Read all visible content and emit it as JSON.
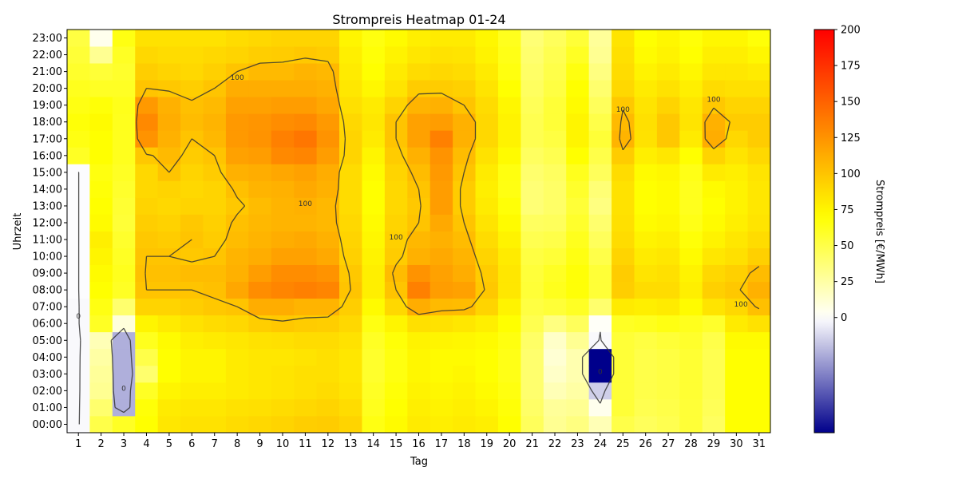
{
  "chart_data": {
    "type": "heatmap",
    "title": "Strompreis Heatmap 01-24",
    "xlabel": "Tag",
    "ylabel": "Uhrzeit",
    "x_categories": [
      "1",
      "2",
      "3",
      "4",
      "5",
      "6",
      "7",
      "8",
      "9",
      "10",
      "11",
      "12",
      "13",
      "14",
      "15",
      "16",
      "17",
      "18",
      "19",
      "20",
      "21",
      "22",
      "23",
      "24",
      "25",
      "26",
      "27",
      "28",
      "29",
      "30",
      "31"
    ],
    "y_categories": [
      "00:00",
      "01:00",
      "02:00",
      "03:00",
      "04:00",
      "05:00",
      "06:00",
      "07:00",
      "08:00",
      "09:00",
      "10:00",
      "11:00",
      "12:00",
      "13:00",
      "14:00",
      "15:00",
      "16:00",
      "17:00",
      "18:00",
      "19:00",
      "20:00",
      "21:00",
      "22:00",
      "23:00"
    ],
    "colorbar": {
      "label": "Strompreis [€/MWh]",
      "ticks": [
        "0",
        "25",
        "50",
        "75",
        "100",
        "125",
        "150",
        "175",
        "200"
      ],
      "range": [
        -80,
        200
      ],
      "colors": {
        "low": "#00008b",
        "zero": "#ffffff",
        "mid": "#ffff00",
        "high": "#ff0000"
      }
    },
    "contour_levels": [
      0,
      100
    ],
    "contour_labels": [
      "0",
      "100"
    ],
    "series_by_day": [
      [
        -2,
        -2,
        -2,
        -2,
        -2,
        -2,
        -2,
        -2,
        -1,
        -1,
        -1,
        -1,
        -1,
        -1,
        -1,
        -1,
        60,
        65,
        68,
        65,
        62,
        58,
        55,
        52
      ],
      [
        50,
        40,
        30,
        28,
        25,
        20,
        60,
        65,
        70,
        72,
        75,
        78,
        72,
        70,
        68,
        66,
        70,
        70,
        72,
        68,
        60,
        55,
        30,
        5
      ],
      [
        60,
        -25,
        -25,
        -25,
        -25,
        -25,
        10,
        40,
        60,
        62,
        60,
        58,
        55,
        56,
        58,
        60,
        62,
        62,
        62,
        63,
        60,
        58,
        60,
        65
      ],
      [
        70,
        68,
        60,
        40,
        50,
        62,
        75,
        92,
        100,
        102,
        100,
        98,
        95,
        92,
        90,
        90,
        98,
        125,
        130,
        122,
        100,
        95,
        90,
        85
      ],
      [
        82,
        80,
        75,
        70,
        70,
        72,
        80,
        92,
        100,
        102,
        100,
        96,
        93,
        90,
        92,
        100,
        105,
        110,
        112,
        110,
        98,
        92,
        88,
        85
      ],
      [
        85,
        82,
        78,
        75,
        75,
        78,
        85,
        95,
        100,
        104,
        98,
        100,
        98,
        92,
        90,
        92,
        96,
        100,
        104,
        102,
        95,
        90,
        88,
        85
      ],
      [
        85,
        82,
        78,
        75,
        75,
        80,
        88,
        98,
        102,
        104,
        100,
        96,
        94,
        92,
        92,
        96,
        100,
        106,
        108,
        105,
        100,
        94,
        90,
        85
      ],
      [
        88,
        85,
        80,
        80,
        80,
        82,
        90,
        100,
        115,
        110,
        108,
        104,
        102,
        98,
        102,
        110,
        118,
        122,
        122,
        118,
        112,
        100,
        92,
        88
      ],
      [
        90,
        86,
        82,
        82,
        82,
        85,
        95,
        112,
        128,
        120,
        112,
        108,
        106,
        104,
        108,
        112,
        120,
        125,
        124,
        118,
        112,
        105,
        95,
        90
      ],
      [
        92,
        88,
        84,
        84,
        82,
        86,
        98,
        112,
        132,
        128,
        118,
        112,
        108,
        108,
        110,
        115,
        130,
        135,
        128,
        120,
        112,
        105,
        96,
        92
      ],
      [
        95,
        90,
        86,
        86,
        84,
        88,
        96,
        108,
        135,
        128,
        118,
        114,
        108,
        110,
        114,
        118,
        132,
        140,
        130,
        120,
        112,
        108,
        98,
        92
      ],
      [
        96,
        92,
        88,
        86,
        86,
        88,
        95,
        108,
        132,
        125,
        114,
        110,
        106,
        106,
        110,
        112,
        120,
        125,
        122,
        115,
        110,
        106,
        96,
        92
      ],
      [
        92,
        88,
        84,
        82,
        82,
        85,
        90,
        95,
        100,
        98,
        94,
        92,
        90,
        88,
        88,
        88,
        92,
        92,
        90,
        86,
        82,
        80,
        78,
        75
      ],
      [
        65,
        62,
        60,
        58,
        58,
        60,
        65,
        72,
        78,
        78,
        76,
        74,
        72,
        70,
        70,
        72,
        75,
        80,
        82,
        80,
        74,
        70,
        68,
        66
      ],
      [
        72,
        70,
        68,
        66,
        66,
        68,
        75,
        90,
        100,
        104,
        96,
        94,
        92,
        90,
        90,
        92,
        96,
        100,
        100,
        92,
        84,
        80,
        76,
        72
      ],
      [
        80,
        78,
        76,
        74,
        74,
        76,
        86,
        112,
        135,
        125,
        110,
        106,
        100,
        98,
        100,
        104,
        110,
        118,
        118,
        108,
        96,
        88,
        82,
        78
      ],
      [
        78,
        76,
        74,
        72,
        72,
        75,
        85,
        105,
        120,
        118,
        114,
        110,
        114,
        120,
        120,
        122,
        125,
        135,
        120,
        110,
        96,
        90,
        85,
        80
      ],
      [
        80,
        78,
        76,
        74,
        72,
        74,
        82,
        104,
        118,
        112,
        108,
        104,
        100,
        96,
        96,
        100,
        104,
        110,
        110,
        100,
        94,
        88,
        84,
        80
      ],
      [
        78,
        75,
        72,
        70,
        70,
        72,
        78,
        92,
        98,
        96,
        92,
        88,
        84,
        80,
        78,
        80,
        85,
        90,
        90,
        88,
        84,
        80,
        76,
        74
      ],
      [
        70,
        68,
        66,
        64,
        64,
        66,
        70,
        76,
        82,
        82,
        80,
        76,
        72,
        68,
        65,
        66,
        72,
        76,
        76,
        74,
        70,
        66,
        64,
        62
      ],
      [
        45,
        42,
        40,
        40,
        40,
        42,
        48,
        52,
        55,
        54,
        52,
        48,
        44,
        38,
        38,
        40,
        44,
        48,
        48,
        46,
        44,
        42,
        40,
        38
      ],
      [
        30,
        28,
        20,
        15,
        12,
        15,
        35,
        55,
        62,
        60,
        55,
        50,
        45,
        42,
        42,
        44,
        48,
        52,
        55,
        55,
        52,
        50,
        48,
        45
      ],
      [
        35,
        30,
        25,
        22,
        22,
        30,
        45,
        60,
        68,
        68,
        65,
        62,
        58,
        55,
        58,
        62,
        70,
        75,
        75,
        72,
        70,
        66,
        60,
        55
      ],
      [
        20,
        5,
        -15,
        -80,
        -80,
        -2,
        2,
        40,
        55,
        55,
        50,
        45,
        40,
        35,
        38,
        45,
        50,
        55,
        50,
        45,
        40,
        35,
        30,
        28
      ],
      [
        50,
        55,
        55,
        55,
        55,
        55,
        60,
        80,
        95,
        96,
        92,
        88,
        86,
        85,
        85,
        88,
        96,
        108,
        105,
        98,
        90,
        88,
        86,
        84
      ],
      [
        45,
        48,
        50,
        50,
        50,
        52,
        62,
        78,
        88,
        84,
        80,
        76,
        72,
        70,
        70,
        72,
        78,
        85,
        86,
        84,
        80,
        76,
        72,
        70
      ],
      [
        48,
        50,
        52,
        52,
        52,
        55,
        65,
        80,
        88,
        86,
        82,
        78,
        74,
        72,
        72,
        74,
        82,
        98,
        98,
        92,
        85,
        80,
        76,
        74
      ],
      [
        55,
        55,
        56,
        56,
        56,
        58,
        62,
        72,
        78,
        76,
        72,
        68,
        64,
        62,
        62,
        64,
        70,
        80,
        84,
        82,
        78,
        74,
        70,
        68
      ],
      [
        44,
        46,
        48,
        48,
        48,
        50,
        58,
        84,
        94,
        90,
        82,
        76,
        72,
        70,
        72,
        80,
        92,
        112,
        110,
        98,
        88,
        82,
        78,
        74
      ],
      [
        70,
        70,
        70,
        70,
        70,
        72,
        80,
        90,
        98,
        94,
        86,
        82,
        78,
        76,
        76,
        78,
        84,
        90,
        96,
        92,
        86,
        82,
        78,
        74
      ],
      [
        70,
        70,
        70,
        70,
        70,
        72,
        85,
        102,
        110,
        104,
        94,
        88,
        84,
        82,
        82,
        84,
        90,
        96,
        96,
        92,
        86,
        80,
        74,
        68
      ]
    ]
  }
}
